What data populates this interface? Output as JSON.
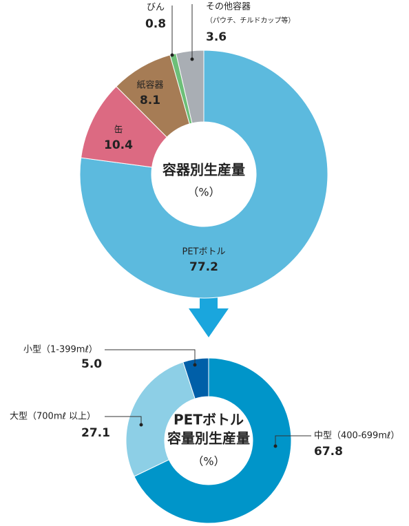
{
  "chart_data": [
    {
      "type": "donut",
      "title": "容器別生産量",
      "unit": "（%）",
      "categories": [
        "PETボトル",
        "缶",
        "紙容器",
        "びん",
        "その他容器"
      ],
      "values": [
        77.2,
        10.4,
        8.1,
        0.8,
        3.6
      ],
      "colors": [
        "#5cbade",
        "#dc6a82",
        "#a67c55",
        "#6dbf78",
        "#a9aeb4"
      ],
      "annotation": "（パウチ、チルドカップ等）"
    },
    {
      "type": "donut",
      "title": "PETボトル",
      "subtitle": "容量別生産量",
      "unit": "（%）",
      "categories": [
        "中型（400-699mℓ）",
        "大型（700mℓ 以上）",
        "小型（1-399mℓ）"
      ],
      "values": [
        67.8,
        27.1,
        5.0
      ],
      "value_labels": [
        "67.8",
        "27.1",
        "5.0"
      ],
      "colors": [
        "#0095c9",
        "#8dcfe6",
        "#005fa8"
      ]
    }
  ]
}
